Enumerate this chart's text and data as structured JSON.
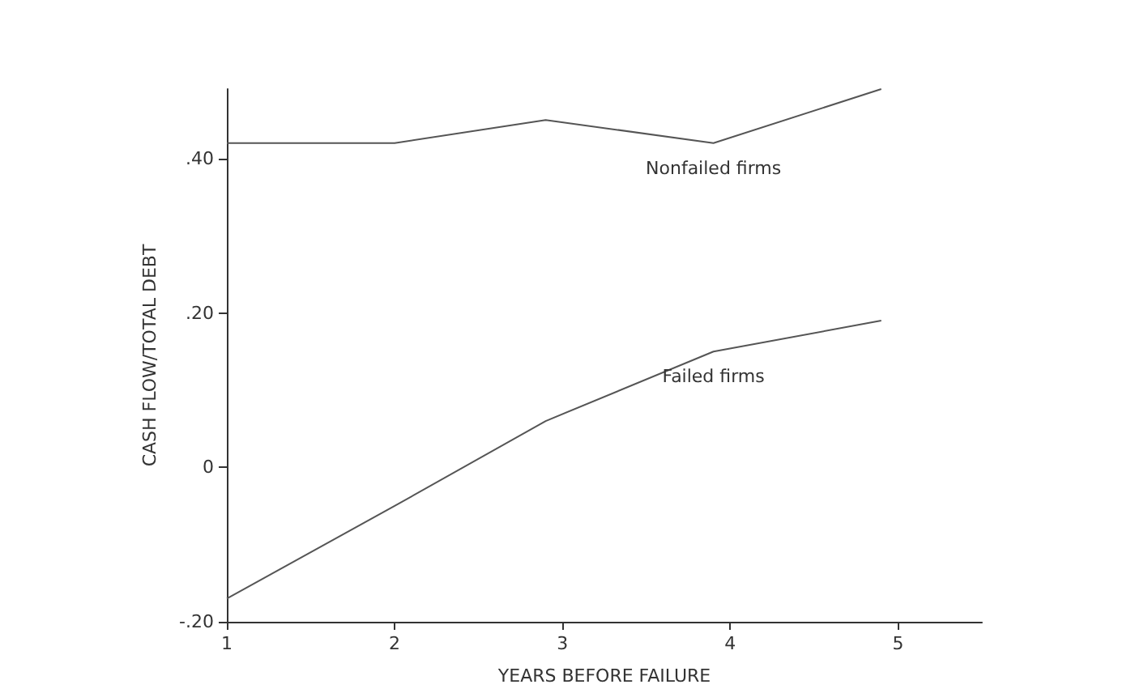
{
  "chart_data": {
    "type": "line",
    "xlabel": "YEARS BEFORE FAILURE",
    "ylabel": "CASH FLOW/TOTAL DEBT",
    "series": [
      {
        "name": "Nonfailed firms",
        "color": "#555555",
        "x": [
          1,
          2,
          2.9,
          3.9,
          4.9
        ],
        "values": [
          0.42,
          0.42,
          0.45,
          0.42,
          0.49
        ]
      },
      {
        "name": "Failed firms",
        "color": "#555555",
        "x": [
          1,
          2,
          2.9,
          3.9,
          4.9
        ],
        "values": [
          -0.17,
          -0.05,
          0.06,
          0.15,
          0.19
        ]
      }
    ],
    "xlim": [
      1,
      5.5
    ],
    "xticks": [
      1,
      2,
      3,
      4,
      5
    ],
    "ylim": [
      -0.2,
      0.49
    ],
    "yticks": [
      {
        "value": -0.2,
        "label": "-.20"
      },
      {
        "value": 0,
        "label": "0"
      },
      {
        "value": 0.2,
        "label": ".20"
      },
      {
        "value": 0.4,
        "label": ".40"
      }
    ],
    "grid": false,
    "legend": false,
    "marker": "none",
    "line_style": "solid"
  }
}
